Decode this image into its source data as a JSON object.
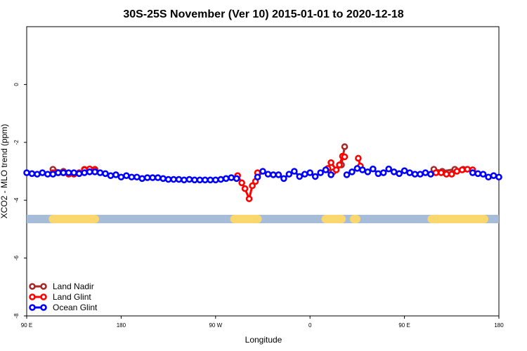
{
  "chart_data": {
    "type": "line",
    "title": "30S-25S November (Ver 10)   2015-01-01 to 2020-12-18",
    "xlabel": "Longitude",
    "ylabel": "XCO2 - MLO trend (ppm)",
    "xlim": [
      -90,
      360
    ],
    "ylim": [
      -8,
      2
    ],
    "x_ticks": [
      {
        "value": -90,
        "label": "90 E"
      },
      {
        "value": 0,
        "label": "180"
      },
      {
        "value": 90,
        "label": "90 W"
      },
      {
        "value": 180,
        "label": "0"
      },
      {
        "value": 270,
        "label": "90 E"
      },
      {
        "value": 360,
        "label": "180"
      }
    ],
    "y_ticks": [
      {
        "value": 0,
        "label": "0"
      },
      {
        "value": -2,
        "label": "-2"
      },
      {
        "value": -4,
        "label": "-4"
      },
      {
        "value": -6,
        "label": "-6"
      },
      {
        "value": -8,
        "label": "-8"
      }
    ],
    "land_strip": {
      "y": -4.65,
      "ocean_color": "#a7bcd9",
      "land_color": "#f9d66e",
      "land_ranges": [
        [
          -65,
          -25
        ],
        [
          108,
          130
        ],
        [
          195,
          210
        ],
        [
          222,
          224
        ],
        [
          296,
          346
        ]
      ]
    },
    "series": [
      {
        "name": "Land Nadir",
        "color": "#a52a2a",
        "points": [
          [
            -65,
            -2.93
          ],
          [
            -55,
            -3.0
          ],
          [
            -35,
            -2.93
          ],
          [
            -30,
            -2.93
          ],
          [
            -25,
            -2.93
          ],
          [
            202,
            -3.02
          ],
          [
            210,
            -2.78
          ],
          [
            213,
            -2.15
          ],
          [
            298,
            -2.93
          ],
          [
            306,
            -3.0
          ],
          [
            318,
            -2.93
          ],
          [
            326,
            -2.93
          ]
        ]
      },
      {
        "name": "Land Glint",
        "color": "#ff0000",
        "points": [
          [
            -65,
            -3.05
          ],
          [
            -60,
            -3.05
          ],
          [
            -55,
            -3.05
          ],
          [
            -50,
            -3.1
          ],
          [
            -45,
            -3.1
          ],
          [
            -40,
            -3.05
          ],
          [
            -35,
            -2.95
          ],
          [
            -30,
            -2.92
          ],
          [
            -25,
            -2.95
          ],
          [
            111,
            -3.15
          ],
          [
            115,
            -3.4
          ],
          [
            118,
            -3.6
          ],
          [
            122,
            -3.95
          ],
          [
            125,
            -3.5
          ],
          [
            128,
            -3.35
          ],
          [
            130,
            -3.05
          ],
          [
            197,
            -2.9
          ],
          [
            200,
            -2.7
          ],
          [
            205,
            -2.95
          ],
          [
            208,
            -2.78
          ],
          [
            211,
            -2.48
          ],
          [
            213,
            -2.5
          ],
          [
            226,
            -2.55
          ],
          [
            228,
            -2.82
          ],
          [
            300,
            -3.05
          ],
          [
            305,
            -3.05
          ],
          [
            310,
            -3.1
          ],
          [
            315,
            -3.1
          ],
          [
            320,
            -3.0
          ],
          [
            325,
            -2.95
          ],
          [
            330,
            -2.93
          ],
          [
            335,
            -2.95
          ]
        ]
      },
      {
        "name": "Ocean Glint",
        "color": "#0000ff",
        "points": [
          [
            -90,
            -3.05
          ],
          [
            -85,
            -3.08
          ],
          [
            -80,
            -3.1
          ],
          [
            -75,
            -3.05
          ],
          [
            -70,
            -3.1
          ],
          [
            -65,
            -3.1
          ],
          [
            -60,
            -3.05
          ],
          [
            -55,
            -3.05
          ],
          [
            -50,
            -3.05
          ],
          [
            -45,
            -3.05
          ],
          [
            -40,
            -3.08
          ],
          [
            -35,
            -3.05
          ],
          [
            -30,
            -3.02
          ],
          [
            -25,
            -3.02
          ],
          [
            -20,
            -3.05
          ],
          [
            -15,
            -3.08
          ],
          [
            -10,
            -3.15
          ],
          [
            -5,
            -3.12
          ],
          [
            0,
            -3.2
          ],
          [
            5,
            -3.15
          ],
          [
            10,
            -3.2
          ],
          [
            15,
            -3.2
          ],
          [
            20,
            -3.25
          ],
          [
            25,
            -3.22
          ],
          [
            30,
            -3.22
          ],
          [
            35,
            -3.22
          ],
          [
            40,
            -3.25
          ],
          [
            45,
            -3.28
          ],
          [
            50,
            -3.28
          ],
          [
            55,
            -3.28
          ],
          [
            60,
            -3.3
          ],
          [
            65,
            -3.28
          ],
          [
            70,
            -3.3
          ],
          [
            75,
            -3.3
          ],
          [
            80,
            -3.3
          ],
          [
            85,
            -3.3
          ],
          [
            90,
            -3.3
          ],
          [
            95,
            -3.28
          ],
          [
            100,
            -3.25
          ],
          [
            105,
            -3.22
          ],
          [
            110,
            -3.25
          ],
          [
            130,
            -3.2
          ],
          [
            135,
            -3.0
          ],
          [
            140,
            -3.1
          ],
          [
            145,
            -3.12
          ],
          [
            150,
            -3.12
          ],
          [
            155,
            -3.25
          ],
          [
            160,
            -3.1
          ],
          [
            165,
            -3.0
          ],
          [
            170,
            -3.18
          ],
          [
            175,
            -3.1
          ],
          [
            180,
            -3.05
          ],
          [
            185,
            -3.18
          ],
          [
            190,
            -3.05
          ],
          [
            195,
            -2.95
          ],
          [
            200,
            -3.12
          ],
          [
            215,
            -3.12
          ],
          [
            220,
            -3.02
          ],
          [
            225,
            -2.9
          ],
          [
            230,
            -2.95
          ],
          [
            235,
            -3.02
          ],
          [
            240,
            -2.92
          ],
          [
            245,
            -3.08
          ],
          [
            250,
            -3.05
          ],
          [
            255,
            -2.92
          ],
          [
            260,
            -3.02
          ],
          [
            265,
            -3.08
          ],
          [
            270,
            -2.98
          ],
          [
            275,
            -3.05
          ],
          [
            280,
            -3.1
          ],
          [
            285,
            -3.1
          ],
          [
            290,
            -3.05
          ],
          [
            295,
            -3.1
          ],
          [
            335,
            -3.05
          ],
          [
            340,
            -3.08
          ],
          [
            345,
            -3.1
          ],
          [
            350,
            -3.2
          ],
          [
            355,
            -3.15
          ],
          [
            360,
            -3.2
          ]
        ]
      }
    ],
    "lines": [
      {
        "color": "#0000ff",
        "points": [
          [
            -50,
            -3.05
          ],
          [
            -20,
            -3.05
          ]
        ]
      }
    ],
    "legend": {
      "position": "bottom-left"
    }
  }
}
